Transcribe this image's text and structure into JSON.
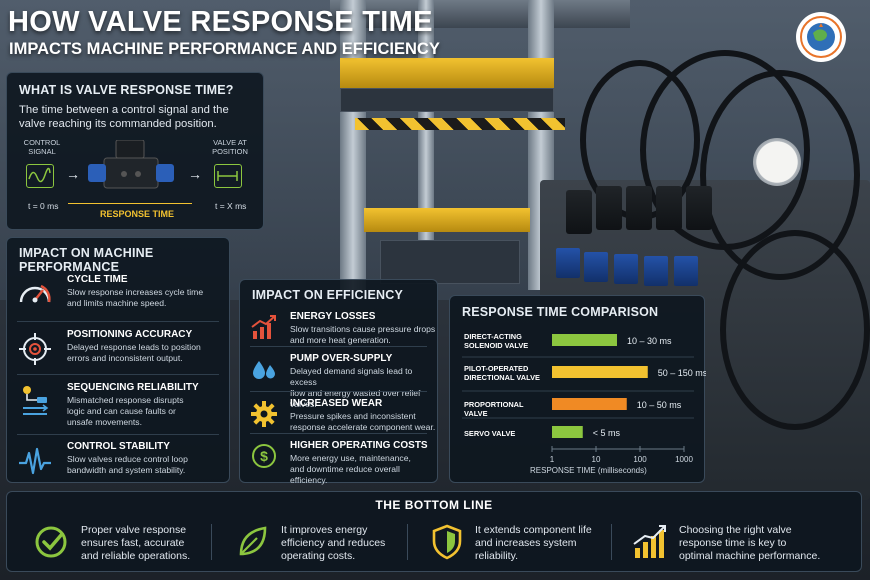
{
  "header": {
    "title": "HOW VALVE RESPONSE TIME",
    "subtitle": "IMPACTS MACHINE PERFORMANCE AND EFFICIENCY"
  },
  "what": {
    "title": "WHAT IS VALVE RESPONSE TIME?",
    "definition": "The time between a control signal and the valve reaching its commanded position.",
    "control_signal": "CONTROL\nSIGNAL",
    "valve_at_position": "VALVE AT\nPOSITION",
    "t_start": "t = 0 ms",
    "t_end": "t = X ms",
    "response_time": "RESPONSE TIME",
    "icons": [
      "sine-wave-icon",
      "valve-icon",
      "position-icon"
    ]
  },
  "performance": {
    "title": "IMPACT ON MACHINE PERFORMANCE",
    "items": [
      {
        "name": "CYCLE TIME",
        "desc": "Slow response increases cycle time\nand limits machine speed.",
        "icon": "speedometer-icon"
      },
      {
        "name": "POSITIONING ACCURACY",
        "desc": "Delayed response leads to position\nerrors and inconsistent output.",
        "icon": "target-icon"
      },
      {
        "name": "SEQUENCING RELIABILITY",
        "desc": "Mismatched response disrupts\nlogic and can cause faults or\nunsafe movements.",
        "icon": "sequence-icon"
      },
      {
        "name": "CONTROL STABILITY",
        "desc": "Slow valves reduce control loop\nbandwidth and system stability.",
        "icon": "waveform-icon"
      }
    ]
  },
  "efficiency": {
    "title": "IMPACT ON EFFICIENCY",
    "items": [
      {
        "name": "ENERGY LOSSES",
        "desc": "Slow transitions cause pressure drops\nand more heat generation.",
        "icon": "trend-up-icon"
      },
      {
        "name": "PUMP OVER-SUPPLY",
        "desc": "Delayed demand signals lead to excess\nflow and energy wasted over relief valves.",
        "icon": "droplets-icon"
      },
      {
        "name": "INCREASED WEAR",
        "desc": "Pressure spikes and inconsistent\nresponse accelerate component wear.",
        "icon": "gear-icon"
      },
      {
        "name": "HIGHER OPERATING COSTS",
        "desc": "More energy use, maintenance,\nand downtime reduce overall efficiency.",
        "icon": "dollar-icon"
      }
    ]
  },
  "chart_data": {
    "type": "bar",
    "orientation": "horizontal",
    "title": "RESPONSE TIME COMPARISON",
    "xlabel": "RESPONSE TIME (milliseconds)",
    "x_scale": "log",
    "xlim": [
      1,
      1000
    ],
    "x_ticks": [
      "1",
      "10",
      "100",
      "1000"
    ],
    "grid": false,
    "categories": [
      "DIRECT-ACTING\nSOLENOID VALVE",
      "PILOT-OPERATED\nDIRECTIONAL VALVE",
      "PROPORTIONAL VALVE",
      "SERVO VALVE"
    ],
    "values": [
      [
        10,
        30
      ],
      [
        50,
        150
      ],
      [
        10,
        50
      ],
      [
        0,
        5
      ]
    ],
    "value_labels": [
      "10 – 30 ms",
      "50 – 150 ms",
      "10 – 50 ms",
      "< 5 ms"
    ],
    "bar_lengths_ms": [
      30,
      150,
      50,
      5
    ],
    "colors": [
      "#8cc63f",
      "#f2c230",
      "#f08a24",
      "#8cc63f"
    ]
  },
  "bottom": {
    "title": "THE BOTTOM LINE",
    "items": [
      {
        "text": "Proper valve response\nensures fast, accurate\nand reliable operations.",
        "icon": "check-circle-icon"
      },
      {
        "text": "It improves energy\nefficiency and reduces\noperating costs.",
        "icon": "leaf-icon"
      },
      {
        "text": "It extends component life\nand increases system\nreliability.",
        "icon": "shield-icon"
      },
      {
        "text": "Choosing the right valve\nresponse time is key to\noptimal machine performance.",
        "icon": "growth-chart-icon"
      }
    ]
  },
  "colors": {
    "accent_green": "#8cc63f",
    "accent_yellow": "#f2c230",
    "accent_orange": "#f08a24",
    "accent_red": "#e5533c",
    "accent_blue": "#4aa3e0",
    "panel_bg": "#0d161f"
  }
}
